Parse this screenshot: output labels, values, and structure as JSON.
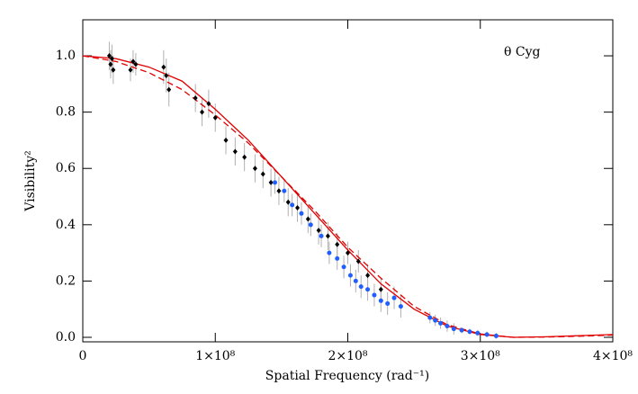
{
  "chart_data": {
    "type": "scatter",
    "annotation": "θ Cyg",
    "x_label": "Spatial Frequency (rad⁻¹)",
    "y_label": "Visibility²",
    "xlim": [
      0,
      400000000
    ],
    "ylim": [
      -0.016,
      1.128
    ],
    "xticks": [
      0,
      {
        "value": 100000000,
        "label": "1×10⁸"
      },
      {
        "value": 200000000,
        "label": "2×10⁸"
      },
      {
        "value": 300000000,
        "label": "3×10⁸"
      },
      {
        "value": 400000000,
        "label": "4×10⁸"
      }
    ],
    "yticks": [
      {
        "value": 0,
        "label": "0.0"
      },
      0.2,
      0.4,
      0.6,
      0.8,
      {
        "value": 1,
        "label": "1.0"
      }
    ],
    "error_color": "#b0b0b0",
    "series": [
      {
        "color": "#000000",
        "marker": "diamond",
        "x": [
          20000000,
          21000000,
          22000000,
          23000000,
          36000000,
          38000000,
          40000000,
          61000000,
          63000000,
          65000000,
          85000000,
          90000000,
          95000000,
          100000000,
          108000000,
          115000000,
          122000000,
          130000000,
          136000000,
          142000000,
          148000000,
          155000000,
          162000000,
          170000000,
          178000000,
          185000000,
          192000000,
          200000000,
          208000000,
          215000000,
          225000000
        ],
        "values": [
          1.0,
          0.97,
          0.99,
          0.95,
          0.95,
          0.98,
          0.97,
          0.96,
          0.93,
          0.88,
          0.85,
          0.8,
          0.83,
          0.78,
          0.7,
          0.66,
          0.64,
          0.6,
          0.58,
          0.55,
          0.52,
          0.48,
          0.46,
          0.42,
          0.38,
          0.36,
          0.33,
          0.3,
          0.27,
          0.22,
          0.17
        ],
        "errors": [
          0.05,
          0.05,
          0.05,
          0.05,
          0.04,
          0.04,
          0.04,
          0.06,
          0.06,
          0.06,
          0.05,
          0.05,
          0.05,
          0.05,
          0.05,
          0.05,
          0.05,
          0.05,
          0.05,
          0.05,
          0.05,
          0.05,
          0.05,
          0.05,
          0.05,
          0.05,
          0.04,
          0.04,
          0.04,
          0.04,
          0.04
        ]
      },
      {
        "color": "#1f5fff",
        "marker": "circle",
        "x": [
          145000000,
          152000000,
          158000000,
          165000000,
          172000000,
          180000000,
          186000000,
          192000000,
          197000000,
          202000000,
          206000000,
          210000000,
          215000000,
          220000000,
          225000000,
          230000000,
          235000000,
          240000000,
          262000000,
          266000000,
          270000000,
          275000000,
          280000000,
          286000000,
          292000000,
          298000000,
          305000000,
          312000000
        ],
        "values": [
          0.55,
          0.52,
          0.47,
          0.44,
          0.4,
          0.36,
          0.3,
          0.28,
          0.25,
          0.22,
          0.2,
          0.18,
          0.17,
          0.15,
          0.13,
          0.12,
          0.14,
          0.11,
          0.07,
          0.06,
          0.05,
          0.04,
          0.03,
          0.025,
          0.02,
          0.015,
          0.01,
          0.005
        ],
        "errors": [
          0.04,
          0.04,
          0.04,
          0.04,
          0.04,
          0.04,
          0.04,
          0.04,
          0.04,
          0.04,
          0.04,
          0.04,
          0.04,
          0.04,
          0.04,
          0.04,
          0.04,
          0.04,
          0.02,
          0.02,
          0.02,
          0.02,
          0.02,
          0.01,
          0.01,
          0.01,
          0.01,
          0.01
        ]
      }
    ],
    "models": [
      {
        "color": "#e00000",
        "dash": false,
        "x": [
          0,
          25000000,
          50000000,
          75000000,
          100000000,
          125000000,
          150000000,
          175000000,
          200000000,
          225000000,
          250000000,
          275000000,
          300000000,
          325000000,
          350000000,
          375000000,
          400000000
        ],
        "values": [
          1.0,
          0.99,
          0.96,
          0.91,
          0.81,
          0.7,
          0.57,
          0.44,
          0.31,
          0.19,
          0.1,
          0.04,
          0.01,
          0.0,
          0.002,
          0.006,
          0.01
        ]
      },
      {
        "color": "#e00000",
        "dash": true,
        "x": [
          0,
          25000000,
          50000000,
          75000000,
          100000000,
          125000000,
          150000000,
          175000000,
          200000000,
          225000000,
          250000000,
          275000000,
          300000000,
          325000000,
          350000000,
          375000000,
          400000000
        ],
        "values": [
          1.0,
          0.98,
          0.94,
          0.88,
          0.79,
          0.69,
          0.57,
          0.45,
          0.32,
          0.21,
          0.11,
          0.045,
          0.012,
          0.0,
          0.001,
          0.004,
          0.008
        ]
      }
    ]
  }
}
